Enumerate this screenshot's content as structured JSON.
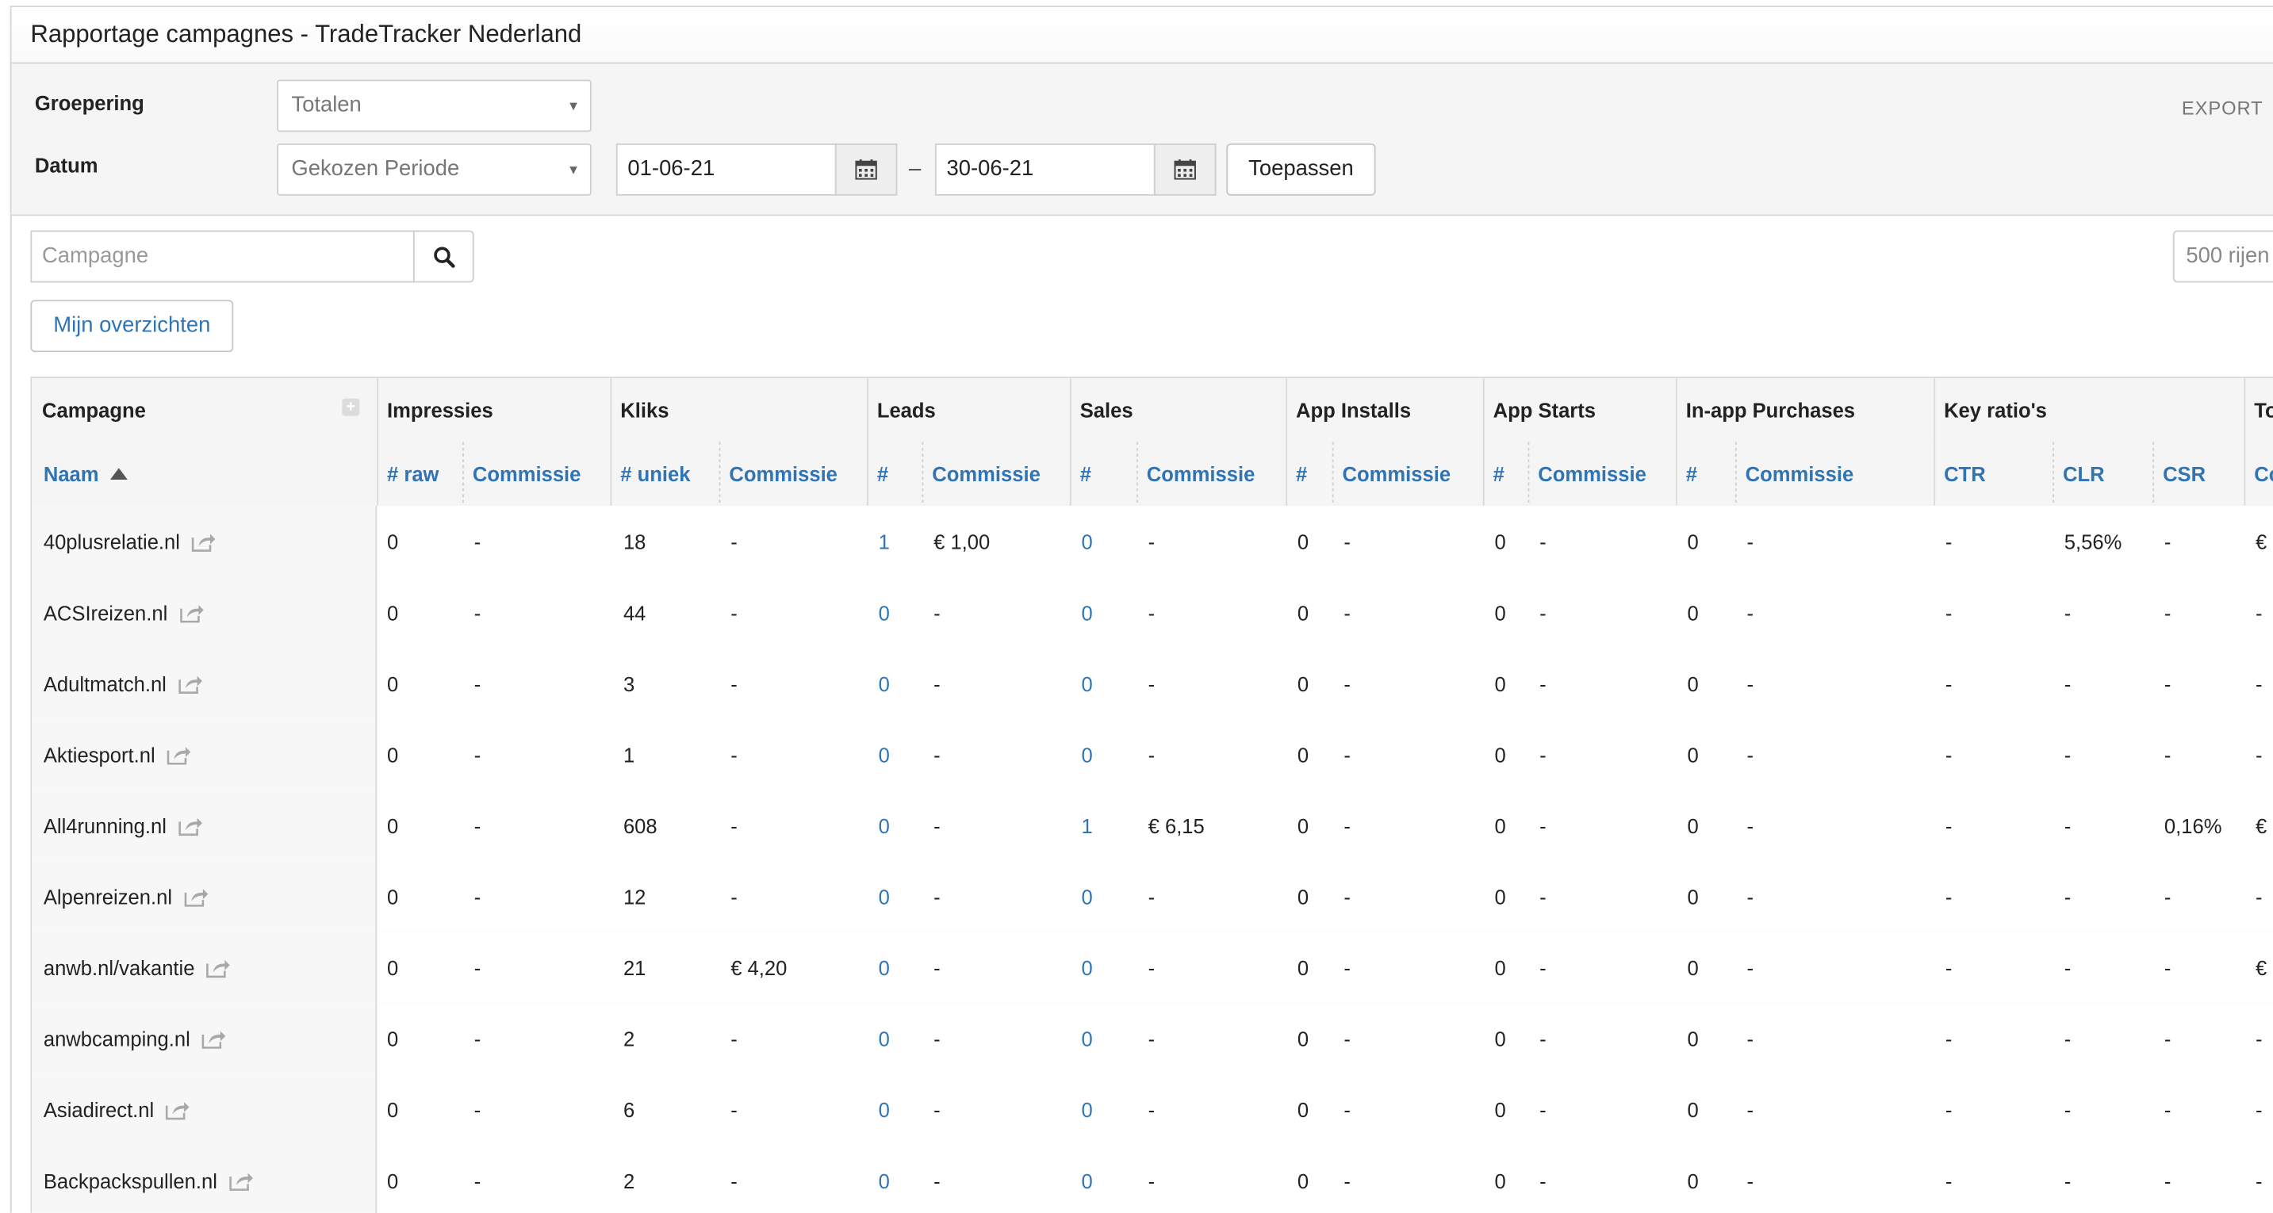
{
  "panel": {
    "title": "Rapportage campagnes - TradeTracker Nederland"
  },
  "filters": {
    "grouping_label": "Groepering",
    "grouping_value": "Totalen",
    "date_label": "Datum",
    "period_value": "Gekozen Periode",
    "date_from": "01-06-21",
    "date_separator": "–",
    "date_to": "30-06-21",
    "apply_label": "Toepassen",
    "export_label": "EXPORT"
  },
  "search": {
    "placeholder": "Campagne",
    "rows_value": "500 rijen"
  },
  "overview_button": "Mijn overzichten",
  "table": {
    "groups": [
      "Campagne",
      "Impressies",
      "Kliks",
      "Leads",
      "Sales",
      "App Installs",
      "App Starts",
      "In-app Purchases",
      "Key ratio's",
      "To"
    ],
    "subheaders": [
      "Naam",
      "# raw",
      "Commissie",
      "# uniek",
      "Commissie",
      "#",
      "Commissie",
      "#",
      "Commissie",
      "#",
      "Commissie",
      "#",
      "Commissie",
      "#",
      "Commissie",
      "CTR",
      "CLR",
      "CSR",
      "Co"
    ],
    "rows": [
      {
        "name": "40plusrelatie.nl",
        "cells": [
          "0",
          "-",
          "18",
          "-",
          "1",
          "€ 1,00",
          "0",
          "-",
          "0",
          "-",
          "0",
          "-",
          "0",
          "-",
          "-",
          "5,56%",
          "-",
          "€"
        ]
      },
      {
        "name": "ACSIreizen.nl",
        "cells": [
          "0",
          "-",
          "44",
          "-",
          "0",
          "-",
          "0",
          "-",
          "0",
          "-",
          "0",
          "-",
          "0",
          "-",
          "-",
          "-",
          "-",
          "-"
        ]
      },
      {
        "name": "Adultmatch.nl",
        "cells": [
          "0",
          "-",
          "3",
          "-",
          "0",
          "-",
          "0",
          "-",
          "0",
          "-",
          "0",
          "-",
          "0",
          "-",
          "-",
          "-",
          "-",
          "-"
        ]
      },
      {
        "name": "Aktiesport.nl",
        "cells": [
          "0",
          "-",
          "1",
          "-",
          "0",
          "-",
          "0",
          "-",
          "0",
          "-",
          "0",
          "-",
          "0",
          "-",
          "-",
          "-",
          "-",
          "-"
        ]
      },
      {
        "name": "All4running.nl",
        "cells": [
          "0",
          "-",
          "608",
          "-",
          "0",
          "-",
          "1",
          "€ 6,15",
          "0",
          "-",
          "0",
          "-",
          "0",
          "-",
          "-",
          "-",
          "0,16%",
          "€"
        ]
      },
      {
        "name": "Alpenreizen.nl",
        "cells": [
          "0",
          "-",
          "12",
          "-",
          "0",
          "-",
          "0",
          "-",
          "0",
          "-",
          "0",
          "-",
          "0",
          "-",
          "-",
          "-",
          "-",
          "-"
        ]
      },
      {
        "name": "anwb.nl/vakantie",
        "cells": [
          "0",
          "-",
          "21",
          "€ 4,20",
          "0",
          "-",
          "0",
          "-",
          "0",
          "-",
          "0",
          "-",
          "0",
          "-",
          "-",
          "-",
          "-",
          "€"
        ]
      },
      {
        "name": "anwbcamping.nl",
        "cells": [
          "0",
          "-",
          "2",
          "-",
          "0",
          "-",
          "0",
          "-",
          "0",
          "-",
          "0",
          "-",
          "0",
          "-",
          "-",
          "-",
          "-",
          "-"
        ]
      },
      {
        "name": "Asiadirect.nl",
        "cells": [
          "0",
          "-",
          "6",
          "-",
          "0",
          "-",
          "0",
          "-",
          "0",
          "-",
          "0",
          "-",
          "0",
          "-",
          "-",
          "-",
          "-",
          "-"
        ]
      },
      {
        "name": "Backpackspullen.nl",
        "cells": [
          "0",
          "-",
          "2",
          "-",
          "0",
          "-",
          "0",
          "-",
          "0",
          "-",
          "0",
          "-",
          "0",
          "-",
          "-",
          "-",
          "-",
          "-"
        ]
      }
    ]
  },
  "colors": {
    "link": "#2f75b5",
    "header_bg": "#f5f5f5",
    "name_bg": "#f7f7f7"
  }
}
